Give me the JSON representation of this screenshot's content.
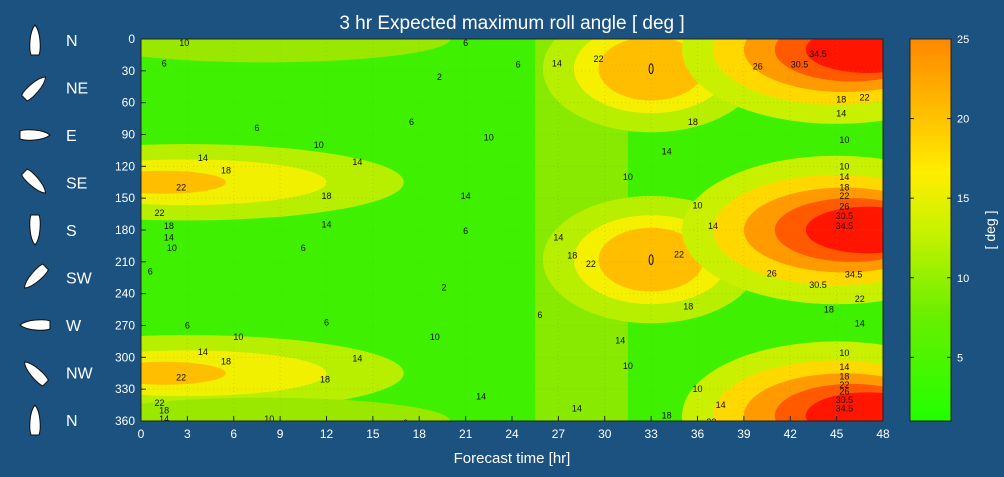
{
  "chart_data": {
    "type": "heatmap",
    "title": "3 hr Expected maximum roll angle [ deg ]",
    "xlabel": "Forecast time [hr]",
    "ylabel": "",
    "colorbar_label": "[ deg ]",
    "x_ticks": [
      "0",
      "3",
      "6",
      "9",
      "12",
      "15",
      "18",
      "21",
      "24",
      "27",
      "30",
      "33",
      "36",
      "39",
      "42",
      "45",
      "48"
    ],
    "y_ticks": [
      "0",
      "30",
      "60",
      "90",
      "120",
      "150",
      "180",
      "210",
      "240",
      "270",
      "300",
      "330",
      "360"
    ],
    "xlim": [
      0,
      48
    ],
    "ylim": [
      0,
      360
    ],
    "y_reversed": true,
    "colorbar_ticks": [
      "5",
      "10",
      "15",
      "20",
      "25"
    ],
    "colorbar_range": [
      1,
      25
    ],
    "grid": true,
    "directions": [
      {
        "label": "N",
        "heading_deg": 0
      },
      {
        "label": "NE",
        "heading_deg": 45
      },
      {
        "label": "E",
        "heading_deg": 90
      },
      {
        "label": "SE",
        "heading_deg": 135
      },
      {
        "label": "S",
        "heading_deg": 180
      },
      {
        "label": "SW",
        "heading_deg": 225
      },
      {
        "label": "W",
        "heading_deg": 270
      },
      {
        "label": "NW",
        "heading_deg": 315
      },
      {
        "label": "N",
        "heading_deg": 360
      }
    ],
    "contour_labels": [
      {
        "text": "10",
        "x": 2.8,
        "y": 4
      },
      {
        "text": "6",
        "x": 21,
        "y": 4
      },
      {
        "text": "6",
        "x": 1.5,
        "y": 23
      },
      {
        "text": "2",
        "x": 19.3,
        "y": 36
      },
      {
        "text": "6",
        "x": 24.4,
        "y": 24
      },
      {
        "text": "14",
        "x": 26.9,
        "y": 23
      },
      {
        "text": "22",
        "x": 29.6,
        "y": 19
      },
      {
        "text": "34.5",
        "x": 43.8,
        "y": 14
      },
      {
        "text": "30.5",
        "x": 42.6,
        "y": 24
      },
      {
        "text": "26",
        "x": 39.9,
        "y": 26
      },
      {
        "text": "22",
        "x": 46.8,
        "y": 55
      },
      {
        "text": "18",
        "x": 45.3,
        "y": 57
      },
      {
        "text": "14",
        "x": 45.3,
        "y": 70
      },
      {
        "text": "18",
        "x": 35.7,
        "y": 78
      },
      {
        "text": "6",
        "x": 7.5,
        "y": 84
      },
      {
        "text": "6",
        "x": 17.5,
        "y": 78
      },
      {
        "text": "10",
        "x": 11.5,
        "y": 100
      },
      {
        "text": "10",
        "x": 22.5,
        "y": 93
      },
      {
        "text": "14",
        "x": 34,
        "y": 106
      },
      {
        "text": "10",
        "x": 45.5,
        "y": 95
      },
      {
        "text": "14",
        "x": 4,
        "y": 112
      },
      {
        "text": "18",
        "x": 5.5,
        "y": 124
      },
      {
        "text": "14",
        "x": 14,
        "y": 116
      },
      {
        "text": "10",
        "x": 45.5,
        "y": 120
      },
      {
        "text": "14",
        "x": 45.5,
        "y": 130
      },
      {
        "text": "10",
        "x": 31.5,
        "y": 130
      },
      {
        "text": "22",
        "x": 2.6,
        "y": 140
      },
      {
        "text": "18",
        "x": 12,
        "y": 148
      },
      {
        "text": "18",
        "x": 45.5,
        "y": 140
      },
      {
        "text": "22",
        "x": 45.5,
        "y": 148
      },
      {
        "text": "14",
        "x": 21,
        "y": 148
      },
      {
        "text": "10",
        "x": 36,
        "y": 157
      },
      {
        "text": "22",
        "x": 1.2,
        "y": 164
      },
      {
        "text": "18",
        "x": 1.8,
        "y": 176
      },
      {
        "text": "14",
        "x": 12,
        "y": 175
      },
      {
        "text": "26",
        "x": 45.5,
        "y": 158
      },
      {
        "text": "30.5",
        "x": 45.5,
        "y": 167
      },
      {
        "text": "34.5",
        "x": 45.5,
        "y": 176
      },
      {
        "text": "14",
        "x": 37,
        "y": 176
      },
      {
        "text": "6",
        "x": 21,
        "y": 181
      },
      {
        "text": "14",
        "x": 1.8,
        "y": 187
      },
      {
        "text": "10",
        "x": 2,
        "y": 197
      },
      {
        "text": "6",
        "x": 10.5,
        "y": 197
      },
      {
        "text": "14",
        "x": 27,
        "y": 187
      },
      {
        "text": "18",
        "x": 27.9,
        "y": 204
      },
      {
        "text": "22",
        "x": 29.1,
        "y": 212
      },
      {
        "text": "22",
        "x": 34.8,
        "y": 203
      },
      {
        "text": "6",
        "x": 0.6,
        "y": 219
      },
      {
        "text": "2",
        "x": 19.6,
        "y": 234
      },
      {
        "text": "6",
        "x": 25.8,
        "y": 260
      },
      {
        "text": "26",
        "x": 40.8,
        "y": 221
      },
      {
        "text": "34.5",
        "x": 46.1,
        "y": 222
      },
      {
        "text": "30.5",
        "x": 43.8,
        "y": 232
      },
      {
        "text": "22",
        "x": 46.5,
        "y": 245
      },
      {
        "text": "18",
        "x": 44.5,
        "y": 255
      },
      {
        "text": "18",
        "x": 35.4,
        "y": 252
      },
      {
        "text": "14",
        "x": 46.5,
        "y": 268
      },
      {
        "text": "6",
        "x": 3,
        "y": 270
      },
      {
        "text": "6",
        "x": 12,
        "y": 267
      },
      {
        "text": "10",
        "x": 6.3,
        "y": 281
      },
      {
        "text": "10",
        "x": 19,
        "y": 281
      },
      {
        "text": "14",
        "x": 31,
        "y": 284
      },
      {
        "text": "14",
        "x": 4,
        "y": 295
      },
      {
        "text": "14",
        "x": 14,
        "y": 301
      },
      {
        "text": "18",
        "x": 5.5,
        "y": 304
      },
      {
        "text": "10",
        "x": 45.5,
        "y": 296
      },
      {
        "text": "22",
        "x": 2.6,
        "y": 319
      },
      {
        "text": "18",
        "x": 11.9,
        "y": 321
      },
      {
        "text": "14",
        "x": 45.5,
        "y": 309
      },
      {
        "text": "18",
        "x": 45.5,
        "y": 318
      },
      {
        "text": "10",
        "x": 31.5,
        "y": 308
      },
      {
        "text": "22",
        "x": 1.2,
        "y": 343
      },
      {
        "text": "18",
        "x": 1.5,
        "y": 350
      },
      {
        "text": "14",
        "x": 22,
        "y": 337
      },
      {
        "text": "10",
        "x": 36,
        "y": 330
      },
      {
        "text": "22",
        "x": 45.5,
        "y": 326
      },
      {
        "text": "26",
        "x": 45.5,
        "y": 332
      },
      {
        "text": "30.5",
        "x": 45.5,
        "y": 340
      },
      {
        "text": "34.5",
        "x": 45.5,
        "y": 348
      },
      {
        "text": "14",
        "x": 1.5,
        "y": 358
      },
      {
        "text": "10",
        "x": 8.3,
        "y": 358
      },
      {
        "text": "6",
        "x": 17.1,
        "y": 362
      },
      {
        "text": "14",
        "x": 28.2,
        "y": 348
      },
      {
        "text": "18",
        "x": 34,
        "y": 355
      },
      {
        "text": "14",
        "x": 37.5,
        "y": 345
      },
      {
        "text": "22",
        "x": 36.9,
        "y": 361
      }
    ],
    "peak_points": [
      {
        "x": 33,
        "y": 28
      },
      {
        "x": 33,
        "y": 208
      }
    ]
  }
}
